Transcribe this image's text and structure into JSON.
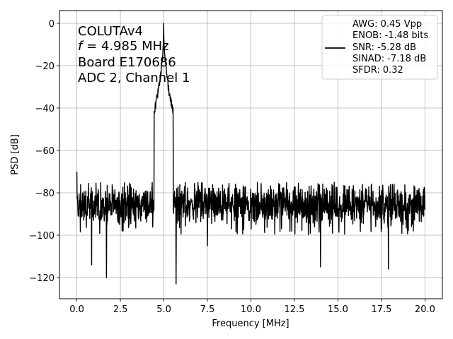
{
  "chart_data": {
    "type": "line",
    "xlabel": "Frequency [MHz]",
    "ylabel": "PSD [dB]",
    "xlim": [
      -1.0,
      21.0
    ],
    "ylim": [
      -130,
      6
    ],
    "xticks": [
      0.0,
      2.5,
      5.0,
      7.5,
      10.0,
      12.5,
      15.0,
      17.5,
      20.0
    ],
    "xtick_labels": [
      "0.0",
      "2.5",
      "5.0",
      "7.5",
      "10.0",
      "12.5",
      "15.0",
      "17.5",
      "20.0"
    ],
    "yticks": [
      0,
      -20,
      -40,
      -60,
      -80,
      -100,
      -120
    ],
    "ytick_labels": [
      "0",
      "−20",
      "−40",
      "−60",
      "−80",
      "−100",
      "−120"
    ],
    "grid": true,
    "annotation_lines": [
      "COLUTAv4",
      "f = 4.985 MHz",
      "Board E170686",
      "ADC 2, Channel 1"
    ],
    "legend": {
      "placement": "top-right",
      "lines": [
        "AWG: 0.45 Vpp",
        "ENOB: -1.48 bits",
        "SNR: -5.28 dB",
        "SINAD: -7.18 dB",
        "SFDR: 0.32"
      ]
    },
    "series": [
      {
        "color": "#000000",
        "signal_frequency": 4.985,
        "peak_value": 0,
        "noise_floor_typical": -86,
        "noise_floor_upper": -75,
        "noise_floor_lower": -100,
        "notable_points": [
          {
            "x": 0.0,
            "y": -70
          },
          {
            "x": 0.85,
            "y": -114
          },
          {
            "x": 1.7,
            "y": -120
          },
          {
            "x": 4.985,
            "y": 0
          },
          {
            "x": 5.7,
            "y": -123
          },
          {
            "x": 7.5,
            "y": -105
          },
          {
            "x": 14.0,
            "y": -115
          },
          {
            "x": 17.9,
            "y": -116
          },
          {
            "x": 20.0,
            "y": -88
          }
        ]
      }
    ]
  }
}
